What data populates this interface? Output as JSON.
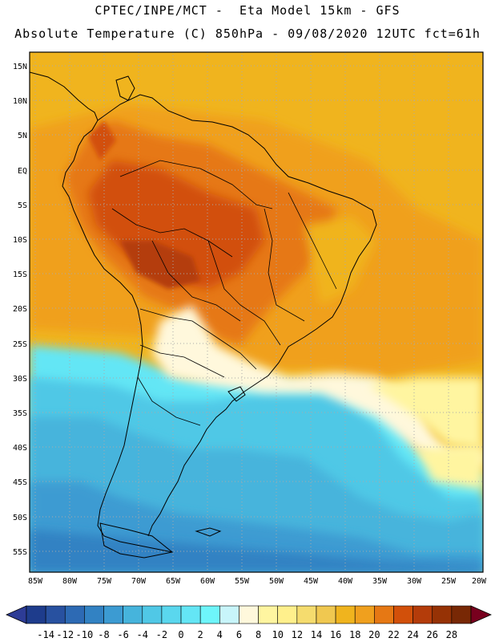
{
  "header": {
    "line1": "CPTEC/INPE/MCT -  Eta Model 15km - GFS",
    "line2": "Absolute Temperature (C) 850hPa - 09/08/2020 12UTC fct=61h"
  },
  "axes": {
    "lat_labels": [
      "15N",
      "10N",
      "5N",
      "EQ",
      "5S",
      "10S",
      "15S",
      "20S",
      "25S",
      "30S",
      "35S",
      "40S",
      "45S",
      "50S",
      "55S"
    ],
    "lon_labels": [
      "85W",
      "80W",
      "75W",
      "70W",
      "65W",
      "60W",
      "55W",
      "50W",
      "45W",
      "40W",
      "35W",
      "30W",
      "25W",
      "20W"
    ]
  },
  "colorbar": {
    "labels": [
      "-14",
      "-12",
      "-10",
      "-8",
      "-6",
      "-4",
      "-2",
      "0",
      "2",
      "4",
      "6",
      "8",
      "10",
      "12",
      "14",
      "16",
      "18",
      "20",
      "22",
      "24",
      "26",
      "28"
    ],
    "colors": [
      "#1e3c8c",
      "#2851a0",
      "#2d6ab4",
      "#3282c3",
      "#3c9bd2",
      "#46b4dc",
      "#50c8e6",
      "#5ad7ee",
      "#64e6f5",
      "#6ef5fa",
      "#c8f5fa",
      "#fff8dc",
      "#fff5a0",
      "#fff08c",
      "#f5dc6e",
      "#f0c850",
      "#f0b41e",
      "#f0a01e",
      "#e67814",
      "#d2500a",
      "#b43c0a",
      "#963205",
      "#782805"
    ],
    "under_color": "#2d3c96",
    "over_color": "#78001e"
  }
}
